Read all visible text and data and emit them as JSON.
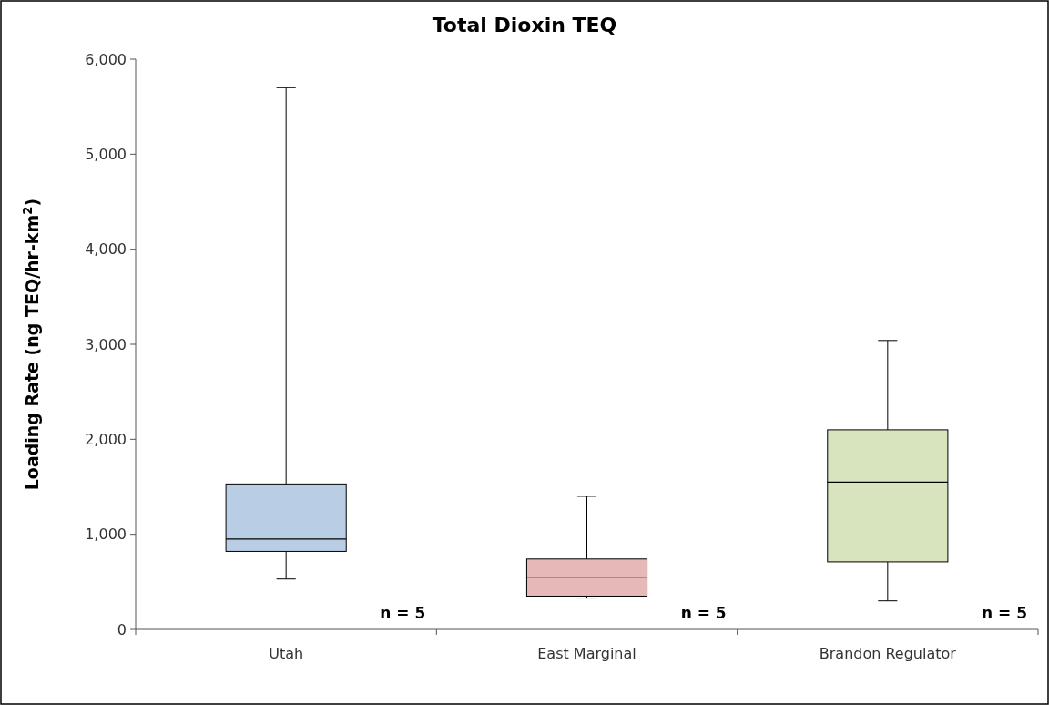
{
  "chart_data": {
    "type": "box",
    "title": "Total Dioxin TEQ",
    "ylabel": "Loading Rate (ng TEQ/hr-km$^{2}$)",
    "categories": [
      "Utah",
      "East Marginal",
      "Brandon Regulator"
    ],
    "colors": [
      "#b9cde5",
      "#e6b9b8",
      "#d7e4bd"
    ],
    "boxes": [
      {
        "low": 530,
        "q1": 820,
        "median": 950,
        "q3": 1530,
        "high": 5700
      },
      {
        "low": 330,
        "q1": 350,
        "median": 550,
        "q3": 740,
        "high": 1400
      },
      {
        "low": 300,
        "q1": 710,
        "median": 1550,
        "q3": 2100,
        "high": 3040
      }
    ],
    "ylim": [
      0,
      6000
    ],
    "yticks": [
      {
        "value": 0,
        "label": "0"
      },
      {
        "value": 1000,
        "label": "1,000"
      },
      {
        "value": 2000,
        "label": "2,000"
      },
      {
        "value": 3000,
        "label": "3,000"
      },
      {
        "value": 4000,
        "label": "4,000"
      },
      {
        "value": 5000,
        "label": "5,000"
      },
      {
        "value": 6000,
        "label": "6,000"
      }
    ],
    "annotations": [
      "n = 5",
      "n = 5",
      "n = 5"
    ]
  }
}
